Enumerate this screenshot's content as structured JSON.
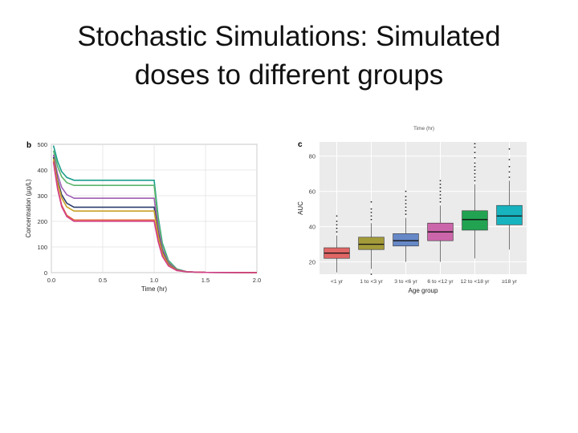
{
  "slide": {
    "title_line1": "Stochastic Simulations: Simulated",
    "title_line2": "doses to different groups"
  },
  "chart_data": [
    {
      "panel": "b",
      "type": "line",
      "xlabel": "Time (hr)",
      "ylabel": "Concentration (µg/L)",
      "xlim": [
        0,
        2.0
      ],
      "ylim": [
        0,
        500
      ],
      "xticks": [
        0.0,
        0.5,
        1.0,
        1.5,
        2.0
      ],
      "xtick_labels": [
        "0.0",
        "0.5",
        "1.0",
        "1.5",
        "2.0"
      ],
      "yticks": [
        0,
        100,
        200,
        300,
        400,
        500
      ],
      "grid": true,
      "series": [
        {
          "color": "#1a9e8c",
          "plateau": 360,
          "peak": 495
        },
        {
          "color": "#5bb56a",
          "plateau": 340,
          "peak": 475
        },
        {
          "color": "#a05fb3",
          "plateau": 290,
          "peak": 460
        },
        {
          "color": "#2c3e6e",
          "plateau": 255,
          "peak": 450
        },
        {
          "color": "#c9a227",
          "plateau": 240,
          "peak": 445
        },
        {
          "color": "#e0633a",
          "plateau": 205,
          "peak": 435
        },
        {
          "color": "#d23f8a",
          "plateau": 200,
          "peak": 430
        }
      ]
    },
    {
      "panel": "c",
      "type": "box",
      "xlabel": "Age group",
      "ylabel": "AUC",
      "ylim": [
        13,
        88
      ],
      "yticks": [
        20,
        40,
        60,
        80
      ],
      "top_text": "Time (hr)",
      "grid": true,
      "categories": [
        "<1 yr",
        "1 to <3 yr",
        "3 to <6 yr",
        "6 to <12 yr",
        "12 to <18 yr",
        "≥18 yr"
      ],
      "boxes": [
        {
          "min": 14,
          "q1": 22,
          "median": 25,
          "q3": 28,
          "max": 35,
          "outliers_high": [
            37,
            39,
            41,
            43,
            46
          ],
          "color": "#e06666"
        },
        {
          "min": 16,
          "q1": 27,
          "median": 30,
          "q3": 34,
          "max": 42,
          "outliers_high": [
            44,
            46,
            48,
            50,
            54
          ],
          "outliers_low": [
            13
          ],
          "color": "#a39a3a"
        },
        {
          "min": 20,
          "q1": 29,
          "median": 32,
          "q3": 36,
          "max": 45,
          "outliers_high": [
            47,
            49,
            51,
            53,
            55,
            57,
            60
          ],
          "color": "#6688c7"
        },
        {
          "min": 20,
          "q1": 32,
          "median": 37,
          "q3": 42,
          "max": 52,
          "outliers_high": [
            54,
            56,
            58,
            60,
            62,
            64,
            66
          ],
          "color": "#cc66aa"
        },
        {
          "min": 22,
          "q1": 38,
          "median": 44,
          "q3": 49,
          "max": 64,
          "outliers_high": [
            66,
            68,
            70,
            72,
            74,
            76,
            79,
            82,
            85,
            87
          ],
          "color": "#22a352"
        },
        {
          "min": 27,
          "q1": 41,
          "median": 46,
          "q3": 52,
          "max": 66,
          "outliers_high": [
            68,
            71,
            74,
            78,
            84
          ],
          "color": "#17b3bf"
        }
      ]
    }
  ]
}
